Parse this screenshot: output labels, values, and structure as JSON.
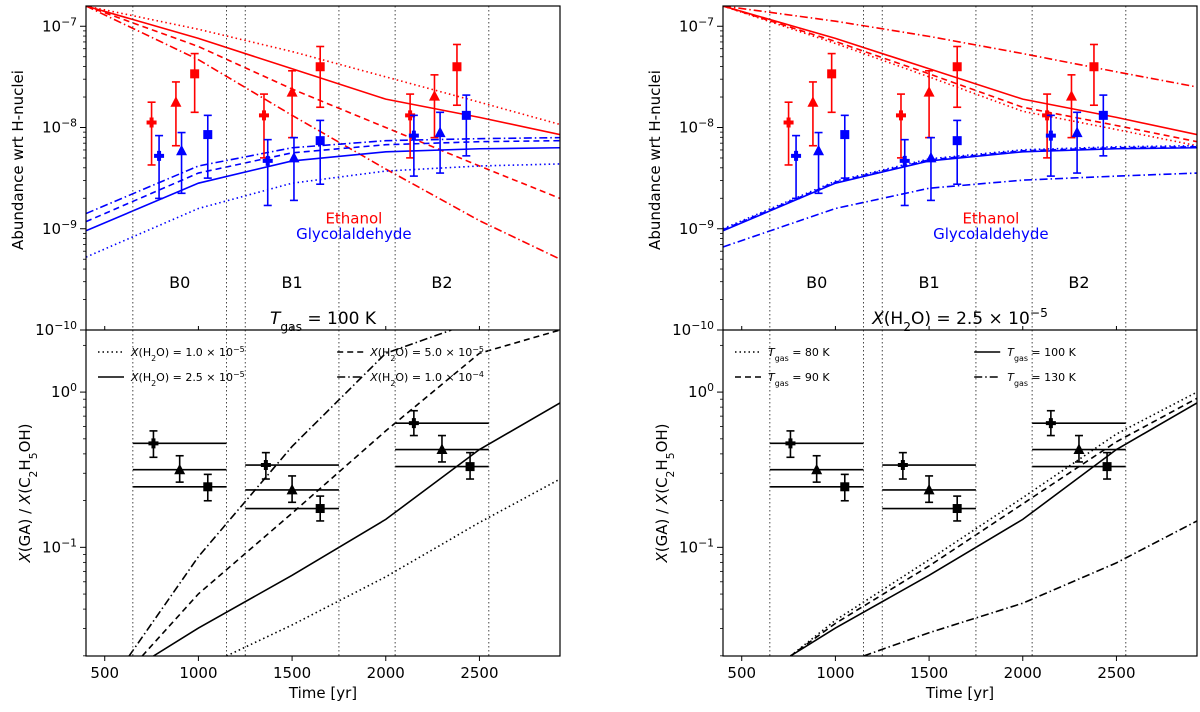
{
  "colors": {
    "ethanol": "#ff0000",
    "glycolaldehyde": "#0000ff",
    "ratio": "#000000"
  },
  "shared": {
    "xlabel": "Time [yr]",
    "xlim": [
      400,
      2930
    ],
    "xticks": [
      500,
      1000,
      1500,
      2000,
      2500
    ],
    "top_ylabel": "Abundance wrt H-nuclei",
    "top_ylim_log10": [
      -10,
      -6.8
    ],
    "top_yticks": [
      {
        "v": -7,
        "t": "10^-7"
      },
      {
        "v": -8,
        "t": "10^-8"
      },
      {
        "v": -9,
        "t": "10^-9"
      },
      {
        "v": -10,
        "t": "10^-10"
      }
    ],
    "bottom_ylabel": "X(GA) / X(C2H5OH)",
    "bottom_ylim_log10": [
      -1.7,
      0.4
    ],
    "bottom_yticks": [
      {
        "v": 0,
        "t": "10^0"
      },
      {
        "v": -1,
        "t": "10^-1"
      }
    ],
    "region_boundaries": [
      650,
      1150,
      1250,
      1750,
      2050,
      2550
    ],
    "regions": [
      {
        "name": "B0",
        "x": 900
      },
      {
        "name": "B1",
        "x": 1500
      },
      {
        "name": "B2",
        "x": 2300
      }
    ],
    "species_labels": {
      "ethanol": "Ethanol",
      "glycolaldehyde": "Glycolaldehyde"
    }
  },
  "chart_data": [
    {
      "type": "line",
      "panel": "left",
      "title": "T_gas = 100 K",
      "legend": [
        {
          "label": "X(H2O) = 1.0 × 10^-5",
          "style": "dotted"
        },
        {
          "label": "X(H2O) = 5.0 × 10^-5",
          "style": "dashed"
        },
        {
          "label": "X(H2O) = 2.5 × 10^-5",
          "style": "solid"
        },
        {
          "label": "X(H2O) = 1.0 × 10^-4",
          "style": "dashdot"
        }
      ],
      "ethanol_models": [
        {
          "style": "dotted",
          "x": [
            400,
            1000,
            1500,
            2000,
            2500,
            2930
          ],
          "log_y": [
            -6.8,
            -7.03,
            -7.25,
            -7.5,
            -7.75,
            -7.97
          ]
        },
        {
          "style": "solid",
          "x": [
            400,
            1000,
            1500,
            2000,
            2500,
            2930
          ],
          "log_y": [
            -6.8,
            -7.12,
            -7.42,
            -7.72,
            -7.9,
            -8.07
          ]
        },
        {
          "style": "dashed",
          "x": [
            400,
            1000,
            1500,
            2000,
            2500,
            2930
          ],
          "log_y": [
            -6.8,
            -7.2,
            -7.62,
            -8.0,
            -8.38,
            -8.7
          ]
        },
        {
          "style": "dashdot",
          "x": [
            400,
            1000,
            1500,
            2000,
            2500,
            2930
          ],
          "log_y": [
            -6.8,
            -7.33,
            -7.88,
            -8.41,
            -8.92,
            -9.3
          ]
        }
      ],
      "glycolaldehyde_models": [
        {
          "style": "dotted",
          "x": [
            400,
            1000,
            1500,
            2000,
            2500,
            2930
          ],
          "log_y": [
            -9.28,
            -8.8,
            -8.55,
            -8.43,
            -8.38,
            -8.36
          ]
        },
        {
          "style": "solid",
          "x": [
            400,
            1000,
            1500,
            2000,
            2500,
            2930
          ],
          "log_y": [
            -9.02,
            -8.55,
            -8.33,
            -8.24,
            -8.21,
            -8.2
          ]
        },
        {
          "style": "dashed",
          "x": [
            400,
            1000,
            1500,
            2000,
            2500,
            2930
          ],
          "log_y": [
            -8.93,
            -8.45,
            -8.25,
            -8.17,
            -8.14,
            -8.13
          ]
        },
        {
          "style": "dashdot",
          "x": [
            400,
            1000,
            1500,
            2000,
            2500,
            2930
          ],
          "log_y": [
            -8.85,
            -8.38,
            -8.2,
            -8.13,
            -8.11,
            -8.1
          ]
        }
      ],
      "ratio_models": [
        {
          "style": "dotted",
          "x": [
            1150,
            1500,
            2000,
            2500,
            2930
          ],
          "log_y": [
            -1.7,
            -1.5,
            -1.19,
            -0.84,
            -0.56
          ]
        },
        {
          "style": "solid",
          "x": [
            760,
            1000,
            1500,
            2000,
            2500,
            2930
          ],
          "log_y": [
            -1.7,
            -1.52,
            -1.18,
            -0.82,
            -0.37,
            -0.07
          ]
        },
        {
          "style": "dashed",
          "x": [
            700,
            1000,
            1500,
            2000,
            2500,
            2930
          ],
          "log_y": [
            -1.7,
            -1.3,
            -0.78,
            -0.25,
            0.25,
            0.4
          ]
        },
        {
          "style": "dashdot",
          "x": [
            630,
            1000,
            1500,
            2000,
            2350
          ],
          "log_y": [
            -1.7,
            -1.06,
            -0.35,
            0.25,
            0.4
          ]
        }
      ]
    },
    {
      "type": "line",
      "panel": "right",
      "title": "X(H2O) = 2.5 × 10^-5",
      "legend": [
        {
          "label": "T_gas = 80 K",
          "style": "dotted"
        },
        {
          "label": "T_gas = 100 K",
          "style": "solid"
        },
        {
          "label": "T_gas = 90 K",
          "style": "dashed"
        },
        {
          "label": "T_gas = 130 K",
          "style": "dashdot"
        }
      ],
      "ethanol_models": [
        {
          "style": "dashdot",
          "x": [
            400,
            1000,
            1500,
            2000,
            2500,
            2930
          ],
          "log_y": [
            -6.8,
            -6.95,
            -7.1,
            -7.27,
            -7.45,
            -7.6
          ]
        },
        {
          "style": "solid",
          "x": [
            400,
            1000,
            1500,
            2000,
            2500,
            2930
          ],
          "log_y": [
            -6.8,
            -7.12,
            -7.42,
            -7.72,
            -7.9,
            -8.07
          ]
        },
        {
          "style": "dashed",
          "x": [
            400,
            1000,
            1500,
            2000,
            2500,
            2930
          ],
          "log_y": [
            -6.8,
            -7.15,
            -7.47,
            -7.8,
            -7.98,
            -8.14
          ]
        },
        {
          "style": "dotted",
          "x": [
            400,
            1000,
            1500,
            2000,
            2500,
            2930
          ],
          "log_y": [
            -6.8,
            -7.17,
            -7.5,
            -7.84,
            -8.02,
            -8.18
          ]
        }
      ],
      "glycolaldehyde_models": [
        {
          "style": "dashdot",
          "x": [
            400,
            1000,
            1500,
            2000,
            2500,
            2930
          ],
          "log_y": [
            -9.18,
            -8.8,
            -8.6,
            -8.52,
            -8.48,
            -8.45
          ]
        },
        {
          "style": "solid",
          "x": [
            400,
            1000,
            1500,
            2000,
            2500,
            2930
          ],
          "log_y": [
            -9.02,
            -8.55,
            -8.33,
            -8.24,
            -8.21,
            -8.2
          ]
        },
        {
          "style": "dashed",
          "x": [
            400,
            1000,
            1500,
            2000,
            2500,
            2930
          ],
          "log_y": [
            -9.01,
            -8.54,
            -8.32,
            -8.23,
            -8.2,
            -8.19
          ]
        },
        {
          "style": "dotted",
          "x": [
            400,
            1000,
            1500,
            2000,
            2500,
            2930
          ],
          "log_y": [
            -9.0,
            -8.53,
            -8.31,
            -8.22,
            -8.19,
            -8.18
          ]
        }
      ],
      "ratio_models": [
        {
          "style": "dotted",
          "x": [
            760,
            1000,
            1500,
            2000,
            2500,
            2930
          ],
          "log_y": [
            -1.7,
            -1.47,
            -1.08,
            -0.68,
            -0.27,
            0.0
          ]
        },
        {
          "style": "dashed",
          "x": [
            760,
            1000,
            1500,
            2000,
            2500,
            2930
          ],
          "log_y": [
            -1.7,
            -1.49,
            -1.12,
            -0.72,
            -0.32,
            -0.04
          ]
        },
        {
          "style": "solid",
          "x": [
            760,
            1000,
            1500,
            2000,
            2500,
            2930
          ],
          "log_y": [
            -1.7,
            -1.52,
            -1.18,
            -0.82,
            -0.37,
            -0.07
          ]
        },
        {
          "style": "dashdot",
          "x": [
            1150,
            1500,
            2000,
            2500,
            2930
          ],
          "log_y": [
            -1.7,
            -1.55,
            -1.36,
            -1.1,
            -0.83
          ]
        }
      ]
    }
  ],
  "observations": {
    "ethanol": [
      {
        "marker": "plus",
        "x": 750,
        "log_y": -7.95,
        "log_lo": -8.37,
        "log_hi": -7.75
      },
      {
        "marker": "triangle",
        "x": 880,
        "log_y": -7.75,
        "log_lo": -8.18,
        "log_hi": -7.55
      },
      {
        "marker": "square",
        "x": 980,
        "log_y": -7.47,
        "log_lo": -7.85,
        "log_hi": -7.27
      },
      {
        "marker": "plus",
        "x": 1350,
        "log_y": -7.88,
        "log_lo": -8.3,
        "log_hi": -7.67
      },
      {
        "marker": "triangle",
        "x": 1500,
        "log_y": -7.65,
        "log_lo": -8.1,
        "log_hi": -7.44
      },
      {
        "marker": "square",
        "x": 1650,
        "log_y": -7.4,
        "log_lo": -7.8,
        "log_hi": -7.2
      },
      {
        "marker": "plus",
        "x": 2130,
        "log_y": -7.88,
        "log_lo": -8.3,
        "log_hi": -7.67
      },
      {
        "marker": "triangle",
        "x": 2260,
        "log_y": -7.69,
        "log_lo": -8.1,
        "log_hi": -7.48
      },
      {
        "marker": "square",
        "x": 2380,
        "log_y": -7.4,
        "log_lo": -7.78,
        "log_hi": -7.18
      }
    ],
    "glycolaldehyde": [
      {
        "marker": "plus",
        "x": 790,
        "log_y": -8.28,
        "log_lo": -8.7,
        "log_hi": -8.08
      },
      {
        "marker": "triangle",
        "x": 910,
        "log_y": -8.23,
        "log_lo": -8.65,
        "log_hi": -8.05
      },
      {
        "marker": "square",
        "x": 1050,
        "log_y": -8.07,
        "log_lo": -8.5,
        "log_hi": -7.88
      },
      {
        "marker": "plus",
        "x": 1370,
        "log_y": -8.33,
        "log_lo": -8.77,
        "log_hi": -8.12
      },
      {
        "marker": "triangle",
        "x": 1510,
        "log_y": -8.3,
        "log_lo": -8.72,
        "log_hi": -8.1
      },
      {
        "marker": "square",
        "x": 1650,
        "log_y": -8.13,
        "log_lo": -8.56,
        "log_hi": -7.93
      },
      {
        "marker": "plus",
        "x": 2150,
        "log_y": -8.08,
        "log_lo": -8.48,
        "log_hi": -7.88
      },
      {
        "marker": "triangle",
        "x": 2290,
        "log_y": -8.05,
        "log_lo": -8.45,
        "log_hi": -7.85
      },
      {
        "marker": "square",
        "x": 2430,
        "log_y": -7.88,
        "log_lo": -8.28,
        "log_hi": -7.68
      }
    ],
    "ratio": [
      {
        "marker": "plus",
        "x": 760,
        "x_lo": 650,
        "x_hi": 1150,
        "log_y": -0.33,
        "log_lo": -0.42,
        "log_hi": -0.25
      },
      {
        "marker": "triangle",
        "x": 900,
        "x_lo": 650,
        "x_hi": 1150,
        "log_y": -0.5,
        "log_lo": -0.58,
        "log_hi": -0.41
      },
      {
        "marker": "square",
        "x": 1050,
        "x_lo": 650,
        "x_hi": 1150,
        "log_y": -0.61,
        "log_lo": -0.7,
        "log_hi": -0.53
      },
      {
        "marker": "plus",
        "x": 1360,
        "x_lo": 1250,
        "x_hi": 1750,
        "log_y": -0.47,
        "log_lo": -0.56,
        "log_hi": -0.39
      },
      {
        "marker": "triangle",
        "x": 1500,
        "x_lo": 1250,
        "x_hi": 1750,
        "log_y": -0.63,
        "log_lo": -0.71,
        "log_hi": -0.54
      },
      {
        "marker": "square",
        "x": 1650,
        "x_lo": 1250,
        "x_hi": 1750,
        "log_y": -0.75,
        "log_lo": -0.83,
        "log_hi": -0.67
      },
      {
        "marker": "plus",
        "x": 2150,
        "x_lo": 2050,
        "x_hi": 2550,
        "log_y": -0.2,
        "log_lo": -0.28,
        "log_hi": -0.12
      },
      {
        "marker": "triangle",
        "x": 2300,
        "x_lo": 2050,
        "x_hi": 2550,
        "log_y": -0.37,
        "log_lo": -0.45,
        "log_hi": -0.28
      },
      {
        "marker": "square",
        "x": 2450,
        "x_lo": 2050,
        "x_hi": 2550,
        "log_y": -0.48,
        "log_lo": -0.56,
        "log_hi": -0.39
      }
    ]
  }
}
